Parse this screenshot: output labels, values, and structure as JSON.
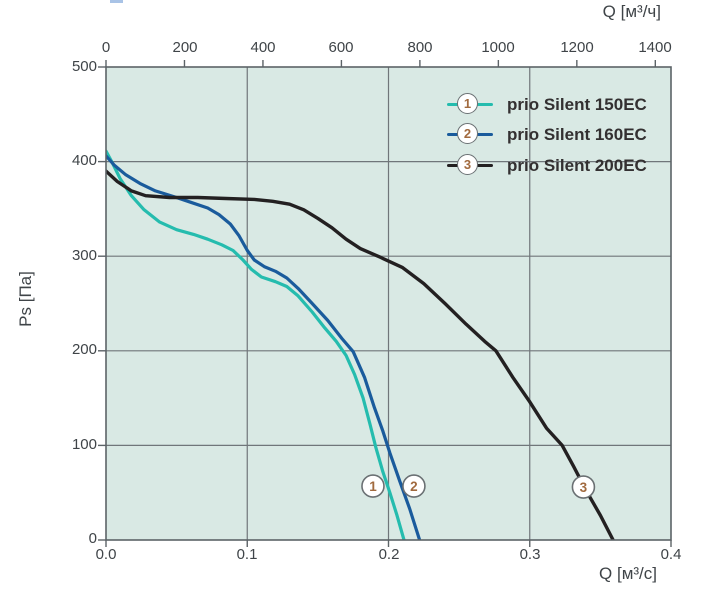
{
  "colors": {
    "page_bg": "#ffffff",
    "plot_bg": "#d9e9e4",
    "grid": "#70767a",
    "border": "#5c6367",
    "tick_text": "#3f4448",
    "legend_text": "#333031",
    "circle_number": "#a16a3e",
    "circle_border": "#6a7073",
    "artifact_blue": "#a9c3e6"
  },
  "chart_data": {
    "type": "line",
    "title": "",
    "grid": {
      "vertical_q": [
        0.1,
        0.2,
        0.3
      ],
      "horizontal_ps": [
        100,
        200,
        300,
        400
      ]
    },
    "top_axis": {
      "label": "Q [м³/ч]",
      "tick_labels": [
        "0",
        "200",
        "400",
        "600",
        "800",
        "1000",
        "1200",
        "1400"
      ],
      "tick_values": [
        0,
        200,
        400,
        600,
        800,
        1000,
        1200,
        1400
      ],
      "max_extent": 1440
    },
    "bottom_axis": {
      "label": "Q [м³/с]",
      "tick_labels": [
        "0.0",
        "0.1",
        "0.2",
        "0.3",
        "0.4"
      ],
      "tick_values": [
        0,
        0.1,
        0.2,
        0.3,
        0.4
      ],
      "max": 0.4
    },
    "left_axis": {
      "label": "Ps [Па]",
      "tick_labels": [
        "500",
        "400",
        "300",
        "200",
        "100",
        "0"
      ],
      "tick_values": [
        500,
        400,
        300,
        200,
        100,
        0
      ],
      "max": 500
    },
    "legend_position": "top-right",
    "series": [
      {
        "num": "1",
        "name": "prio Silent 150EC",
        "color": "#25bcae",
        "stroke_width": 3.2,
        "points": [
          [
            0,
            411
          ],
          [
            0.004,
            400
          ],
          [
            0.01,
            382
          ],
          [
            0.018,
            364
          ],
          [
            0.027,
            349
          ],
          [
            0.038,
            336
          ],
          [
            0.05,
            328
          ],
          [
            0.062,
            323
          ],
          [
            0.072,
            318
          ],
          [
            0.082,
            312
          ],
          [
            0.09,
            306
          ],
          [
            0.097,
            296
          ],
          [
            0.103,
            286
          ],
          [
            0.11,
            278
          ],
          [
            0.12,
            273
          ],
          [
            0.128,
            268
          ],
          [
            0.136,
            258
          ],
          [
            0.146,
            241
          ],
          [
            0.155,
            224
          ],
          [
            0.163,
            210
          ],
          [
            0.17,
            195
          ],
          [
            0.176,
            175
          ],
          [
            0.182,
            150
          ],
          [
            0.187,
            122
          ],
          [
            0.191,
            98
          ],
          [
            0.196,
            72
          ],
          [
            0.201,
            50
          ],
          [
            0.206,
            26
          ],
          [
            0.211,
            0
          ]
        ]
      },
      {
        "num": "2",
        "name": "prio Silent 160EC",
        "color": "#1a5b9c",
        "stroke_width": 3.2,
        "points": [
          [
            0,
            406
          ],
          [
            0.006,
            396
          ],
          [
            0.014,
            386
          ],
          [
            0.024,
            377
          ],
          [
            0.035,
            369
          ],
          [
            0.048,
            363
          ],
          [
            0.06,
            357
          ],
          [
            0.072,
            351
          ],
          [
            0.08,
            344
          ],
          [
            0.088,
            334
          ],
          [
            0.094,
            322
          ],
          [
            0.1,
            306
          ],
          [
            0.105,
            296
          ],
          [
            0.112,
            289
          ],
          [
            0.12,
            284
          ],
          [
            0.128,
            277
          ],
          [
            0.136,
            266
          ],
          [
            0.146,
            250
          ],
          [
            0.157,
            232
          ],
          [
            0.167,
            213
          ],
          [
            0.175,
            199
          ],
          [
            0.183,
            172
          ],
          [
            0.19,
            140
          ],
          [
            0.196,
            115
          ],
          [
            0.201,
            92
          ],
          [
            0.208,
            62
          ],
          [
            0.215,
            33
          ],
          [
            0.222,
            0
          ]
        ]
      },
      {
        "num": "3",
        "name": "prio Silent 200EC",
        "color": "#232021",
        "stroke_width": 3.4,
        "points": [
          [
            0,
            390
          ],
          [
            0.008,
            379
          ],
          [
            0.018,
            369
          ],
          [
            0.028,
            364
          ],
          [
            0.045,
            362
          ],
          [
            0.065,
            362
          ],
          [
            0.085,
            361
          ],
          [
            0.105,
            360
          ],
          [
            0.118,
            358
          ],
          [
            0.13,
            355
          ],
          [
            0.14,
            349
          ],
          [
            0.15,
            340
          ],
          [
            0.16,
            330
          ],
          [
            0.17,
            318
          ],
          [
            0.18,
            308
          ],
          [
            0.194,
            299
          ],
          [
            0.21,
            288
          ],
          [
            0.225,
            271
          ],
          [
            0.24,
            250
          ],
          [
            0.255,
            228
          ],
          [
            0.268,
            210
          ],
          [
            0.276,
            200
          ],
          [
            0.288,
            172
          ],
          [
            0.3,
            146
          ],
          [
            0.312,
            118
          ],
          [
            0.323,
            100
          ],
          [
            0.331,
            78
          ],
          [
            0.34,
            52
          ],
          [
            0.35,
            26
          ],
          [
            0.359,
            0
          ]
        ]
      }
    ],
    "annotations": [
      {
        "num": "1",
        "q": 0.189,
        "ps": 57
      },
      {
        "num": "2",
        "q": 0.218,
        "ps": 57
      },
      {
        "num": "3",
        "q": 0.338,
        "ps": 56
      }
    ]
  }
}
